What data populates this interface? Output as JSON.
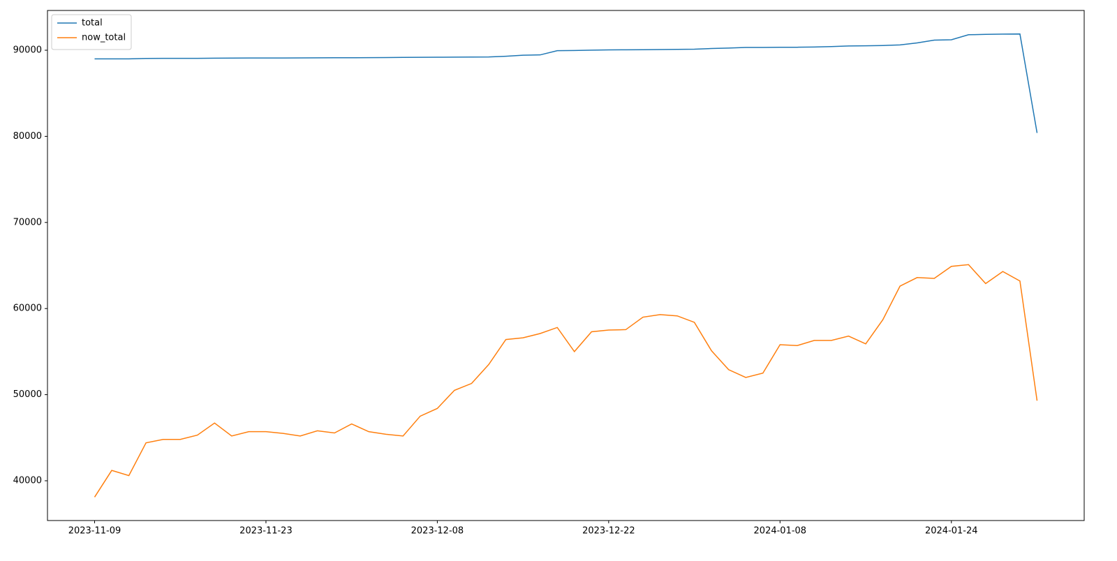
{
  "chart_data": {
    "type": "line",
    "categories": [
      "2023-11-09",
      null,
      null,
      null,
      null,
      null,
      null,
      null,
      null,
      null,
      "2023-11-23",
      null,
      null,
      null,
      null,
      null,
      null,
      null,
      null,
      null,
      "2023-12-08",
      null,
      null,
      null,
      null,
      null,
      null,
      null,
      null,
      null,
      "2023-12-22",
      null,
      null,
      null,
      null,
      null,
      null,
      null,
      null,
      null,
      "2024-01-08",
      null,
      null,
      null,
      null,
      null,
      null,
      null,
      null,
      null,
      "2024-01-24",
      null,
      null,
      null,
      null,
      null
    ],
    "series": [
      {
        "name": "total",
        "color": "#1f77b4",
        "values": [
          89000,
          89000,
          89000,
          89050,
          89060,
          89060,
          89060,
          89080,
          89090,
          89100,
          89100,
          89100,
          89110,
          89120,
          89130,
          89130,
          89140,
          89150,
          89170,
          89180,
          89190,
          89200,
          89210,
          89220,
          89300,
          89420,
          89460,
          89950,
          89970,
          90010,
          90040,
          90050,
          90060,
          90080,
          90100,
          90120,
          90200,
          90250,
          90330,
          90320,
          90340,
          90350,
          90380,
          90430,
          90500,
          90520,
          90550,
          90620,
          90850,
          91180,
          91220,
          91800,
          91840,
          91870,
          91890,
          80400
        ]
      },
      {
        "name": "now_total",
        "color": "#ff7f0e",
        "values": [
          38100,
          41200,
          40600,
          44400,
          44800,
          44800,
          45300,
          46700,
          45200,
          45700,
          45700,
          45500,
          45200,
          45800,
          45550,
          46600,
          45700,
          45400,
          45200,
          47500,
          48400,
          50500,
          51300,
          53500,
          56400,
          56600,
          57100,
          57800,
          55000,
          57300,
          57500,
          57550,
          59000,
          59300,
          59150,
          58400,
          55100,
          52900,
          52000,
          52500,
          55800,
          55700,
          56300,
          56300,
          56800,
          55900,
          58700,
          62600,
          63600,
          63500,
          64900,
          65100,
          62900,
          64300,
          63200,
          49300
        ]
      }
    ],
    "ylim": [
      35380,
      94620
    ],
    "yticks": [
      40000,
      50000,
      60000,
      70000,
      80000,
      90000
    ],
    "grid": false,
    "legend": "upper-left"
  }
}
